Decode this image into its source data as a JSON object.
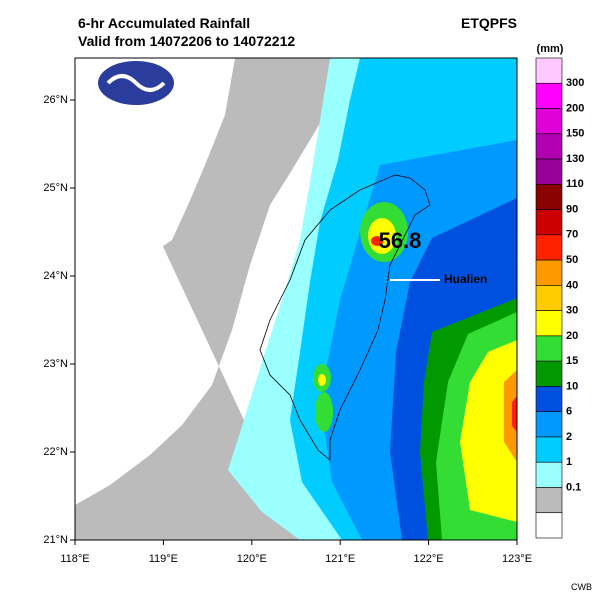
{
  "header": {
    "title": "6-hr Accumulated Rainfall",
    "subtitle": "Valid from 14072206 to 14072212",
    "product": "ETQPFS"
  },
  "map": {
    "lat_labels": [
      "26°N",
      "25°N",
      "24°N",
      "23°N",
      "22°N",
      "21°N"
    ],
    "lon_labels": [
      "118°E",
      "119°E",
      "120°E",
      "121°E",
      "122°E",
      "123°E"
    ],
    "max_value": "56.8",
    "station": "Hualien"
  },
  "legend": {
    "unit": "(mm)",
    "levels": [
      "300",
      "200",
      "150",
      "130",
      "110",
      "90",
      "70",
      "50",
      "40",
      "30",
      "20",
      "15",
      "10",
      "6",
      "2",
      "1",
      "0.1"
    ],
    "colors": [
      "#ffc8ff",
      "#ff00ff",
      "#e000d8",
      "#b000b0",
      "#990099",
      "#8b0000",
      "#cc0000",
      "#ff2200",
      "#ff9900",
      "#ffcc00",
      "#ffff00",
      "#33dd33",
      "#009900",
      "#0050e0",
      "#0099ff",
      "#00ccff",
      "#99ffff",
      "#bbbbbb",
      "#ffffff"
    ]
  },
  "footer": {
    "credit": "CWB"
  }
}
